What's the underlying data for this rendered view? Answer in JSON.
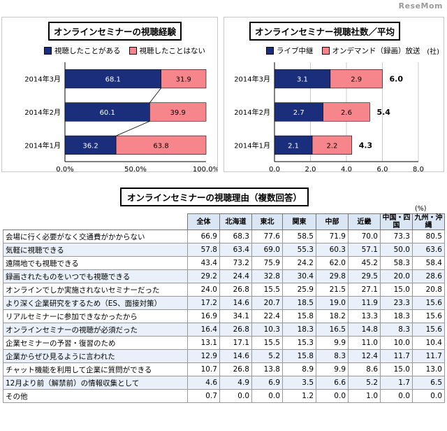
{
  "watermark": "ReseMom",
  "chart_data": [
    {
      "type": "bar",
      "orientation": "horizontal",
      "stacked": true,
      "title": "オンラインセミナーの視聴経験",
      "categories": [
        "2014年3月",
        "2014年2月",
        "2014年1月"
      ],
      "series": [
        {
          "name": "視聴したことがある",
          "values": [
            68.1,
            60.1,
            36.2
          ],
          "color": "#1a2e7c"
        },
        {
          "name": "視聴したことはない",
          "values": [
            31.9,
            39.9,
            63.8
          ],
          "color": "#f7868c"
        }
      ],
      "xlim": [
        0,
        100
      ],
      "x_ticks": [
        "0.0%",
        "50.0%",
        "100.0%"
      ],
      "legend_position": "top"
    },
    {
      "type": "bar",
      "orientation": "horizontal",
      "stacked": true,
      "title": "オンラインセミナー視聴社数／平均",
      "unit": "(社)",
      "categories": [
        "2014年3月",
        "2014年2月",
        "2014年1月"
      ],
      "series": [
        {
          "name": "ライブ中継",
          "values": [
            3.1,
            2.7,
            2.1
          ],
          "color": "#1a2e7c"
        },
        {
          "name": "オンデマンド（録画）放送",
          "values": [
            2.9,
            2.6,
            2.2
          ],
          "color": "#f7868c"
        }
      ],
      "totals": [
        "6.0",
        "5.4",
        "4.3"
      ],
      "xlim": [
        0,
        8
      ],
      "x_ticks": [
        "0.0",
        "2.0",
        "4.0",
        "6.0",
        "8.0"
      ],
      "legend_position": "top"
    },
    {
      "type": "table",
      "title": "オンラインセミナーの視聴理由（複数回答）",
      "unit": "(%)",
      "columns": [
        "全体",
        "北海道",
        "東北",
        "関東",
        "中部",
        "近畿",
        "中国・四国",
        "九州・沖縄"
      ],
      "rows": [
        {
          "label": "会場に行く必要がなく交通費がかからない",
          "values": [
            "66.9",
            "68.3",
            "77.6",
            "58.5",
            "71.9",
            "70.0",
            "73.3",
            "80.5"
          ]
        },
        {
          "label": "気軽に視聴できる",
          "values": [
            "57.8",
            "63.4",
            "69.0",
            "55.3",
            "60.3",
            "57.1",
            "50.0",
            "63.6"
          ]
        },
        {
          "label": "遠隔地でも視聴できる",
          "values": [
            "43.4",
            "73.2",
            "75.9",
            "24.2",
            "62.0",
            "45.2",
            "58.3",
            "58.4"
          ]
        },
        {
          "label": "録画されたものをいつでも視聴できる",
          "values": [
            "29.2",
            "24.4",
            "32.8",
            "30.4",
            "29.8",
            "29.5",
            "20.0",
            "28.6"
          ]
        },
        {
          "label": "オンラインでしか実施されないセミナーだった",
          "values": [
            "24.0",
            "26.8",
            "15.5",
            "25.9",
            "21.5",
            "27.1",
            "15.0",
            "20.8"
          ]
        },
        {
          "label": "より深く企業研究をするため（ES、面接対策）",
          "values": [
            "17.2",
            "14.6",
            "20.7",
            "18.5",
            "19.0",
            "11.9",
            "23.3",
            "15.6"
          ]
        },
        {
          "label": "リアルセミナーに参加できなかったから",
          "values": [
            "16.9",
            "34.1",
            "22.4",
            "15.8",
            "18.2",
            "13.3",
            "18.3",
            "15.6"
          ]
        },
        {
          "label": "オンラインセミナーの視聴が必須だった",
          "values": [
            "16.4",
            "26.8",
            "10.3",
            "18.3",
            "16.5",
            "14.8",
            "8.3",
            "15.6"
          ]
        },
        {
          "label": "企業セミナーの予習・復習のため",
          "values": [
            "13.1",
            "17.1",
            "15.5",
            "15.3",
            "9.9",
            "11.0",
            "10.0",
            "10.4"
          ]
        },
        {
          "label": "企業からぜひ見るように言われた",
          "values": [
            "12.9",
            "14.6",
            "5.2",
            "15.8",
            "8.3",
            "12.4",
            "11.7",
            "11.7"
          ]
        },
        {
          "label": "チャット機能を利用して企業に質問ができる",
          "values": [
            "10.7",
            "26.8",
            "13.8",
            "8.9",
            "9.9",
            "8.6",
            "15.0",
            "13.0"
          ]
        },
        {
          "label": "12月より前（解禁前）の情報収集として",
          "values": [
            "4.6",
            "4.9",
            "6.9",
            "3.5",
            "6.6",
            "5.2",
            "1.7",
            "6.5"
          ]
        },
        {
          "label": "その他",
          "values": [
            "0.7",
            "0.0",
            "0.0",
            "1.2",
            "0.0",
            "1.0",
            "0.0",
            "0.0"
          ]
        }
      ]
    }
  ]
}
